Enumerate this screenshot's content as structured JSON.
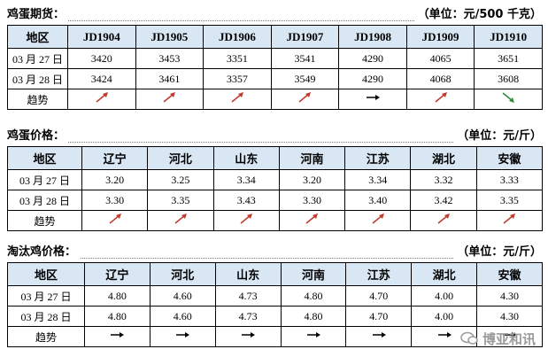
{
  "tables": [
    {
      "title": "鸡蛋期货：",
      "unit": "（单位：元/500 千克）",
      "header": [
        "地区",
        "JD1904",
        "JD1905",
        "JD1906",
        "JD1907",
        "JD1908",
        "JD1909",
        "JD1910"
      ],
      "rows": [
        [
          "03 月 27 日",
          "3420",
          "3453",
          "3351",
          "3541",
          "4290",
          "4065",
          "3651"
        ],
        [
          "03 月 28 日",
          "3424",
          "3461",
          "3357",
          "3549",
          "4290",
          "4068",
          "3608"
        ],
        [
          "趋势"
        ]
      ]
    },
    {
      "title": "鸡蛋价格：",
      "unit": "（单位：元/斤）",
      "header": [
        "地区",
        "辽宁",
        "河北",
        "山东",
        "河南",
        "江苏",
        "湖北",
        "安徽"
      ],
      "rows": [
        [
          "03 月 27 日",
          "3.20",
          "3.25",
          "3.34",
          "3.20",
          "3.34",
          "3.32",
          "3.33"
        ],
        [
          "03 月 28 日",
          "3.30",
          "3.35",
          "3.43",
          "3.30",
          "3.40",
          "3.42",
          "3.35"
        ],
        [
          "趋势"
        ]
      ]
    },
    {
      "title": "淘汰鸡价格：",
      "unit": "（单位：元/斤）",
      "header": [
        "地区",
        "辽宁",
        "河北",
        "山东",
        "河南",
        "江苏",
        "湖北",
        "安徽"
      ],
      "rows": [
        [
          "03 月 27 日",
          "4.80",
          "4.60",
          "4.73",
          "4.80",
          "4.70",
          "4.00",
          "4.30"
        ],
        [
          "03 月 28 日",
          "4.80",
          "4.60",
          "4.73",
          "4.80",
          "4.70",
          "4.00",
          "4.30"
        ],
        [
          "趋势"
        ]
      ]
    }
  ],
  "watermark": "博亚和讯"
}
